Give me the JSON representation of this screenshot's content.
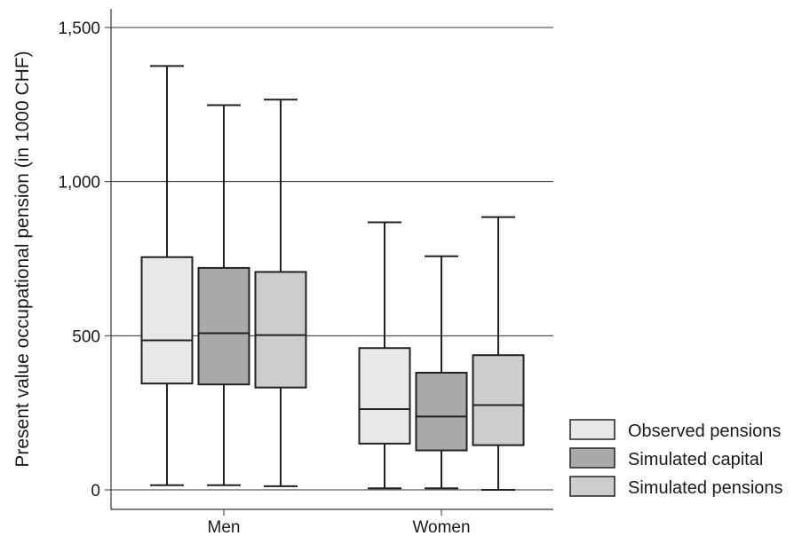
{
  "chart_data": {
    "type": "boxplot",
    "ylabel": "Present value occupational pension (in 1000 CHF)",
    "xlabel": "",
    "ylim": [
      0,
      1500
    ],
    "yticks": [
      0,
      500,
      1000,
      1500
    ],
    "ytick_labels": [
      "0",
      "500",
      "1,000",
      "1,500"
    ],
    "grid": "horizontal",
    "legend_position": "bottom-right",
    "categories": [
      "Men",
      "Women"
    ],
    "series": [
      {
        "name": "Observed pensions",
        "color": "#e8e8e8",
        "boxes": [
          {
            "min": 15,
            "q1": 345,
            "median": 485,
            "q3": 755,
            "max": 1375
          },
          {
            "min": 5,
            "q1": 150,
            "median": 262,
            "q3": 460,
            "max": 868
          }
        ]
      },
      {
        "name": "Simulated capital",
        "color": "#a9a9a9",
        "boxes": [
          {
            "min": 15,
            "q1": 342,
            "median": 508,
            "q3": 720,
            "max": 1248
          },
          {
            "min": 5,
            "q1": 128,
            "median": 238,
            "q3": 380,
            "max": 758
          }
        ]
      },
      {
        "name": "Simulated pensions",
        "color": "#cdcdcd",
        "boxes": [
          {
            "min": 12,
            "q1": 332,
            "median": 502,
            "q3": 707,
            "max": 1266
          },
          {
            "min": 0,
            "q1": 145,
            "median": 275,
            "q3": 437,
            "max": 885
          }
        ]
      }
    ]
  }
}
